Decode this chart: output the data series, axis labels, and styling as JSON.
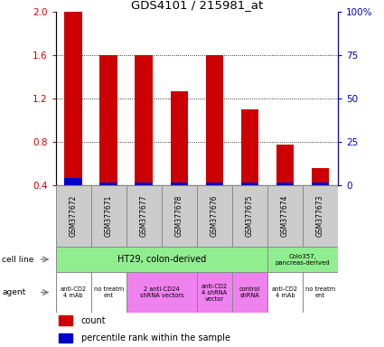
{
  "title": "GDS4101 / 215981_at",
  "samples": [
    "GSM377672",
    "GSM377671",
    "GSM377677",
    "GSM377678",
    "GSM377676",
    "GSM377675",
    "GSM377674",
    "GSM377673"
  ],
  "red_values": [
    2.0,
    1.6,
    1.6,
    1.27,
    1.6,
    1.1,
    0.78,
    0.56
  ],
  "blue_values": [
    0.47,
    0.43,
    0.43,
    0.43,
    0.43,
    0.43,
    0.43,
    0.43
  ],
  "ylim_left": [
    0.4,
    2.0
  ],
  "ylim_right": [
    0,
    100
  ],
  "yticks_left": [
    0.4,
    0.8,
    1.2,
    1.6,
    2.0
  ],
  "yticks_right": [
    0,
    25,
    50,
    75,
    100
  ],
  "ytick_right_labels": [
    "0",
    "25",
    "50",
    "75",
    "100%"
  ],
  "ht29_color": "#90ee90",
  "colo_color": "#90ee90",
  "ht29_label": "HT29, colon-derived",
  "colo_label": "Colo357,\npancreas-derived",
  "agent_row": [
    {
      "label": "anti-CD2\n4 mAb",
      "color": "#ffffff",
      "span": [
        0,
        1
      ]
    },
    {
      "label": "no treatm\nent",
      "color": "#ffffff",
      "span": [
        1,
        2
      ]
    },
    {
      "label": "2 anti-CD24\nshRNA vectors",
      "color": "#ee82ee",
      "span": [
        2,
        4
      ]
    },
    {
      "label": "anti-CD2\n4 shRNA\nvector",
      "color": "#ee82ee",
      "span": [
        4,
        5
      ]
    },
    {
      "label": "control\nshRNA",
      "color": "#ee82ee",
      "span": [
        5,
        6
      ]
    },
    {
      "label": "anti-CD2\n4 mAb",
      "color": "#ffffff",
      "span": [
        6,
        7
      ]
    },
    {
      "label": "no treatm\nent",
      "color": "#ffffff",
      "span": [
        7,
        8
      ]
    }
  ],
  "bar_width": 0.5,
  "red_color": "#cc0000",
  "blue_color": "#0000cc",
  "grid_color": "#000000",
  "tick_color_left": "#cc0000",
  "tick_color_right": "#0000bb",
  "sample_box_color": "#cccccc",
  "border_color": "#888888"
}
